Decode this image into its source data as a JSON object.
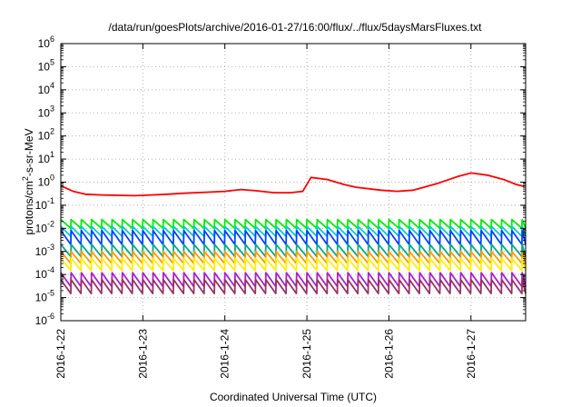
{
  "chart_data": {
    "type": "line",
    "title": "/data/run/goesPlots/archive/2016-01-27/16:00/flux/../flux/5daysMarsFluxes.txt",
    "xlabel": "Coordinated Universal Time (UTC)",
    "ylabel_main": "protons/cm",
    "ylabel_sup": "2",
    "ylabel_rest": "-s-sr-MeV",
    "yscale": "log",
    "ylim": [
      1e-06,
      1000000.0
    ],
    "y_exponents": [
      -6,
      -5,
      -4,
      -3,
      -2,
      -1,
      0,
      1,
      2,
      3,
      4,
      5,
      6
    ],
    "y_base": "10",
    "xlim": [
      "2016-01-22",
      "2016-01-27T16:00"
    ],
    "x_ticks": [
      "2016-1-22",
      "2016-1-23",
      "2016-1-24",
      "2016-1-25",
      "2016-1-26",
      "2016-1-27"
    ],
    "grid": true,
    "sawtooth_period_hours": 3,
    "series": [
      {
        "color": "#ff0000",
        "values": [
          {
            "day": 0.0,
            "y": 0.7
          },
          {
            "day": 0.15,
            "y": 0.4
          },
          {
            "day": 0.3,
            "y": 0.3
          },
          {
            "day": 0.5,
            "y": 0.28
          },
          {
            "day": 0.7,
            "y": 0.27
          },
          {
            "day": 0.9,
            "y": 0.26
          },
          {
            "day": 1.1,
            "y": 0.28
          },
          {
            "day": 1.3,
            "y": 0.3
          },
          {
            "day": 1.5,
            "y": 0.33
          },
          {
            "day": 1.8,
            "y": 0.37
          },
          {
            "day": 2.0,
            "y": 0.4
          },
          {
            "day": 2.2,
            "y": 0.48
          },
          {
            "day": 2.4,
            "y": 0.42
          },
          {
            "day": 2.6,
            "y": 0.35
          },
          {
            "day": 2.8,
            "y": 0.35
          },
          {
            "day": 2.95,
            "y": 0.4
          },
          {
            "day": 3.05,
            "y": 1.6
          },
          {
            "day": 3.25,
            "y": 1.3
          },
          {
            "day": 3.45,
            "y": 0.8
          },
          {
            "day": 3.6,
            "y": 0.6
          },
          {
            "day": 3.9,
            "y": 0.45
          },
          {
            "day": 4.1,
            "y": 0.4
          },
          {
            "day": 4.3,
            "y": 0.45
          },
          {
            "day": 4.6,
            "y": 0.9
          },
          {
            "day": 4.85,
            "y": 1.8
          },
          {
            "day": 5.0,
            "y": 2.5
          },
          {
            "day": 5.2,
            "y": 2.0
          },
          {
            "day": 5.4,
            "y": 1.3
          },
          {
            "day": 5.55,
            "y": 0.8
          },
          {
            "day": 5.65,
            "y": 0.65
          }
        ]
      },
      {
        "color": "#00ee00",
        "values": [
          {
            "day": 0.0,
            "peak": 0.024,
            "trough": 0.01
          },
          {
            "day": 5.67,
            "peak": 0.024,
            "trough": 0.01
          }
        ]
      },
      {
        "color": "#00cccc",
        "values": [
          {
            "day": 0.0,
            "peak": 0.012,
            "trough": 0.0045
          },
          {
            "day": 5.67,
            "peak": 0.012,
            "trough": 0.0045
          }
        ]
      },
      {
        "color": "#0044ff",
        "values": [
          {
            "day": 0.0,
            "peak": 0.008,
            "trough": 0.002
          },
          {
            "day": 5.67,
            "peak": 0.008,
            "trough": 0.002
          }
        ]
      },
      {
        "color": "#00aa88",
        "values": [
          {
            "day": 0.0,
            "peak": 0.002,
            "trough": 0.0006
          },
          {
            "day": 5.67,
            "peak": 0.002,
            "trough": 0.0006
          }
        ]
      },
      {
        "color": "#ff9900",
        "values": [
          {
            "day": 0.0,
            "peak": 0.001,
            "trough": 0.0003
          },
          {
            "day": 5.67,
            "peak": 0.001,
            "trough": 0.0003
          }
        ]
      },
      {
        "color": "#ffee00",
        "values": [
          {
            "day": 0.0,
            "peak": 0.0005,
            "trough": 0.00015
          },
          {
            "day": 5.67,
            "peak": 0.0005,
            "trough": 0.00015
          }
        ]
      },
      {
        "color": "#aa22cc",
        "values": [
          {
            "day": 0.0,
            "peak": 0.00012,
            "trough": 3e-05
          },
          {
            "day": 5.67,
            "peak": 0.00012,
            "trough": 3e-05
          }
        ]
      },
      {
        "color": "#993366",
        "values": [
          {
            "day": 0.0,
            "peak": 6e-05,
            "trough": 1.5e-05
          },
          {
            "day": 5.67,
            "peak": 6e-05,
            "trough": 1.5e-05
          }
        ]
      }
    ]
  }
}
